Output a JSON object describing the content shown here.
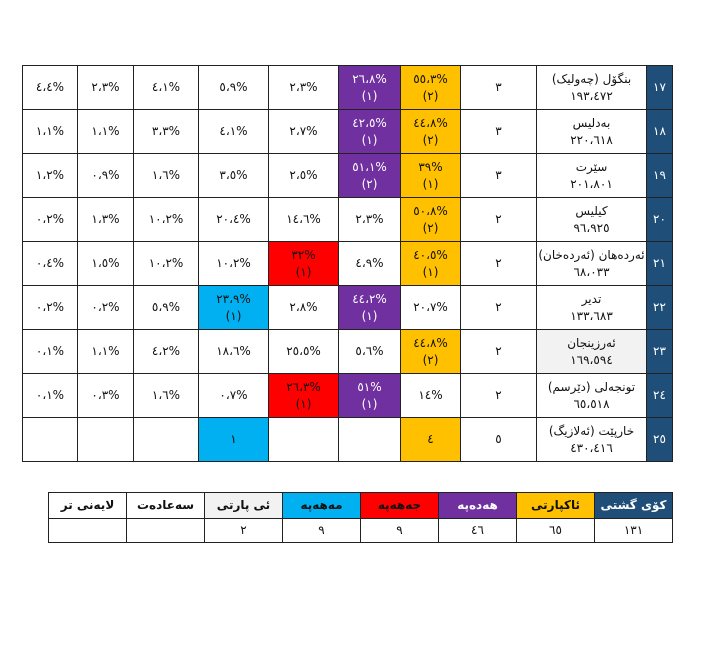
{
  "rows": [
    {
      "num": "١٧",
      "name": "بنگۆل (چەولیک)",
      "pop": "١٩٣،٤٧٢",
      "seats": "٣",
      "c1": {
        "p": "%٥٥،٣",
        "r": "(٢)"
      },
      "c2": {
        "p": "%٢٦،٨",
        "r": "(١)"
      },
      "c3": {
        "p": "%٢،٣",
        "r": ""
      },
      "c4": {
        "p": "%٥،٩",
        "r": ""
      },
      "c5": "%٤،١",
      "c6": "%٢،٣",
      "c7": "%٤،٤"
    },
    {
      "num": "١٨",
      "name": "بەدلیس",
      "pop": "٢٢٠،٦١٨",
      "seats": "٣",
      "c1": {
        "p": "%٤٤،٨",
        "r": "(٢)"
      },
      "c2": {
        "p": "%٤٢،٥",
        "r": "(١)"
      },
      "c3": {
        "p": "%٢،٧",
        "r": ""
      },
      "c4": {
        "p": "%٤،١",
        "r": ""
      },
      "c5": "%٣،٣",
      "c6": "%١،١",
      "c7": "%١،١"
    },
    {
      "num": "١٩",
      "name": "سێرت",
      "pop": "٢٠١،٨٠١",
      "seats": "٣",
      "c1": {
        "p": "%٣٩",
        "r": "(١)"
      },
      "c2": {
        "p": "%٥١،١",
        "r": "(٢)"
      },
      "c3": {
        "p": "%٢،٥",
        "r": ""
      },
      "c4": {
        "p": "%٣،٥",
        "r": ""
      },
      "c5": "%١،٦",
      "c6": "%٠،٩",
      "c7": "%١،٢"
    },
    {
      "num": "٢٠",
      "name": "کیلیس",
      "pop": "٩٦،٩٢٥",
      "seats": "٢",
      "c1": {
        "p": "%٥٠،٨",
        "r": "(٢)"
      },
      "c2": {
        "p": "%٢،٣",
        "r": ""
      },
      "c3": {
        "p": "%١٤،٦",
        "r": ""
      },
      "c4": {
        "p": "%٢٠،٤",
        "r": ""
      },
      "c5": "%١٠،٢",
      "c6": "%١،٣",
      "c7": "%٠،٢"
    },
    {
      "num": "٢١",
      "name": "ئەردەهان (ئەردەخان)",
      "pop": "٦٨،٠٣٣",
      "seats": "٢",
      "c1": {
        "p": "%٤٠،٥",
        "r": "(١)"
      },
      "c2": {
        "p": "%٤،٩",
        "r": ""
      },
      "c3": {
        "p": "%٣٢",
        "r": "(١)"
      },
      "c4": {
        "p": "%١٠،٢",
        "r": ""
      },
      "c5": "%١٠،٢",
      "c6": "%١،٥",
      "c7": "%٠،٤"
    },
    {
      "num": "٢٢",
      "name": "تدیر",
      "pop": "١٣٣،٦٨٣",
      "seats": "٢",
      "c1": {
        "p": "%٢٠،٧",
        "r": ""
      },
      "c2": {
        "p": "%٤٤،٢",
        "r": "(١)"
      },
      "c3": {
        "p": "%٢،٨",
        "r": ""
      },
      "c4": {
        "p": "%٢٣،٩",
        "r": "(١)"
      },
      "c5": "%٥،٩",
      "c6": "%٠،٢",
      "c7": "%٠،٢"
    },
    {
      "num": "٢٣",
      "name": "ئەرزینجان",
      "pop": "١٦٩،٥٩٤",
      "seats": "٢",
      "c1": {
        "p": "%٤٤،٨",
        "r": "(٢)"
      },
      "c2": {
        "p": "%٥،٦",
        "r": ""
      },
      "c3": {
        "p": "%٢٥،٥",
        "r": ""
      },
      "c4": {
        "p": "%١٨،٦",
        "r": ""
      },
      "c5": "%٤،٢",
      "c6": "%١،١",
      "c7": "%٠،١"
    },
    {
      "num": "٢٤",
      "name": "تونجەلی (دێرسم)",
      "pop": "٦٥،٥١٨",
      "seats": "٢",
      "c1": {
        "p": "%١٤",
        "r": ""
      },
      "c2": {
        "p": "%٥١",
        "r": "(١)"
      },
      "c3": {
        "p": "%٢٦،٣",
        "r": "(١)"
      },
      "c4": {
        "p": "%٠،٧",
        "r": ""
      },
      "c5": "%١،٦",
      "c6": "%٠،٣",
      "c7": "%٠،١"
    },
    {
      "num": "٢٥",
      "name": "خارپێت (ئەلازیگ)",
      "pop": "٤٣٠،٤١٦",
      "seats": "٥",
      "c1": {
        "p": "٤",
        "r": ""
      },
      "c2": {
        "p": "",
        "r": ""
      },
      "c3": {
        "p": "",
        "r": ""
      },
      "c4": {
        "p": "١",
        "r": ""
      },
      "c5": "",
      "c6": "",
      "c7": ""
    }
  ],
  "colors": {
    "blue": "#1f4e79",
    "orange": "#ffc000",
    "purple": "#7030a0",
    "red": "#ff0000",
    "cyan": "#00b0f0",
    "grey": "#f2f2f2"
  },
  "summary": {
    "headers": [
      "کۆی گشتی",
      "ئاکپارتی",
      "هەدەپە",
      "جەهەپە",
      "مەهەپە",
      "ئی پارتی",
      "سەعادەت",
      "لایەنی تر"
    ],
    "values": [
      "١٣١",
      "٦٥",
      "٤٦",
      "٩",
      "٩",
      "٢",
      "",
      ""
    ]
  }
}
